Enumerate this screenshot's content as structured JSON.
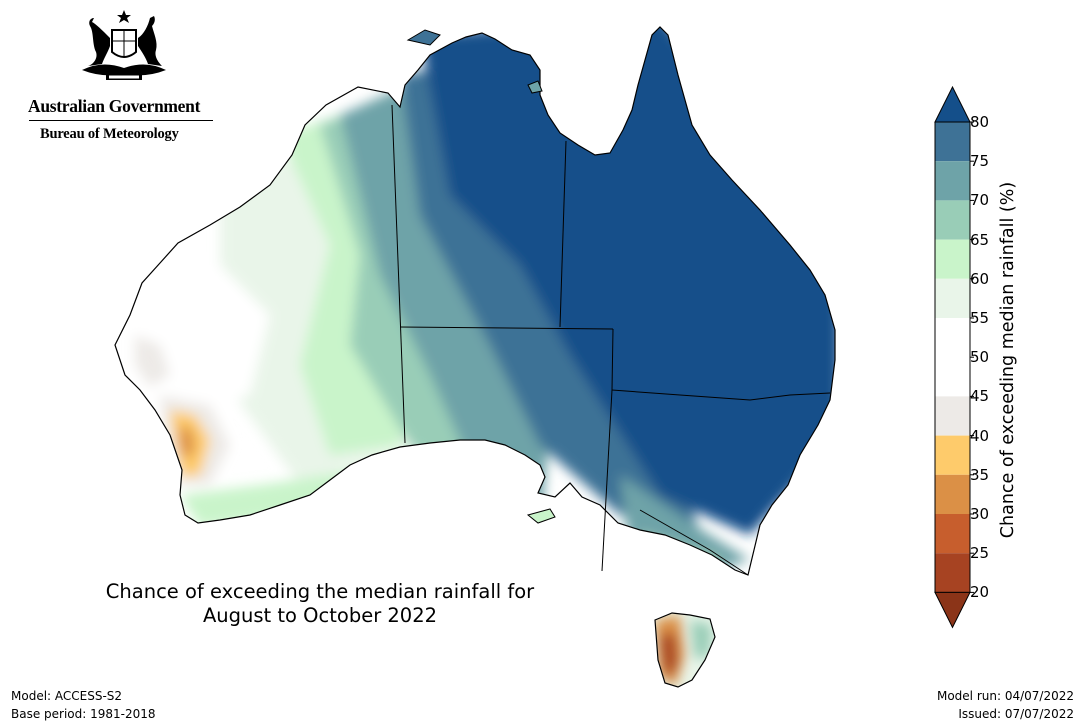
{
  "header": {
    "gov_name": "Australian Government",
    "agency_name": "Bureau of Meteorology"
  },
  "map": {
    "title_line1": "Chance of exceeding the median rainfall for",
    "title_line2": "August to October 2022",
    "region": "Australia"
  },
  "legend": {
    "title": "Chance of exceeding median rainfall (%)",
    "ticks": [
      "80",
      "75",
      "70",
      "65",
      "60",
      "55",
      "50",
      "45",
      "40",
      "35",
      "30",
      "25",
      "20"
    ],
    "bins": [
      {
        "range": "> 80",
        "color": "#144f8a"
      },
      {
        "range": "75-80",
        "color": "#3e7296"
      },
      {
        "range": "70-75",
        "color": "#6ea3a8"
      },
      {
        "range": "65-70",
        "color": "#99cdb7"
      },
      {
        "range": "60-65",
        "color": "#c9f4ca"
      },
      {
        "range": "55-60",
        "color": "#e9f5e9"
      },
      {
        "range": "50-55",
        "color": "#ffffff"
      },
      {
        "range": "45-50",
        "color": "#ffffff"
      },
      {
        "range": "40-45",
        "color": "#edeae7"
      },
      {
        "range": "35-40",
        "color": "#fecb6b"
      },
      {
        "range": "30-35",
        "color": "#db9046"
      },
      {
        "range": "25-30",
        "color": "#c75e2d"
      },
      {
        "range": "20-25",
        "color": "#a74322"
      },
      {
        "range": "< 20",
        "color": "#8b3418"
      }
    ]
  },
  "footer": {
    "model": "Model: ACCESS-S2",
    "base_period": "Base period: 1981-2018",
    "model_run": "Model run: 04/07/2022",
    "issued": "Issued: 07/07/2022"
  }
}
